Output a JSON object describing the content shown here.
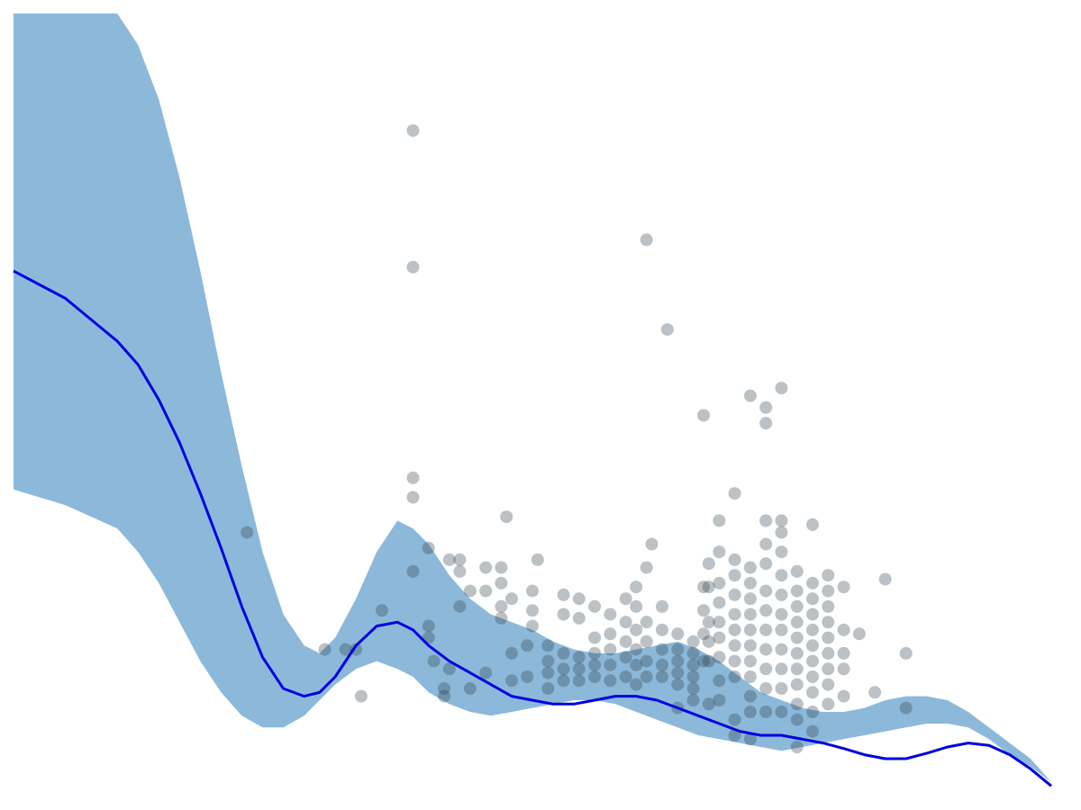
{
  "chart_data": {
    "type": "scatter",
    "title": "",
    "xlabel": "",
    "ylabel": "",
    "xlim": [
      0,
      100
    ],
    "ylim": [
      0,
      100
    ],
    "grid": false,
    "axes_visible": false,
    "colors": {
      "band": "#8cb9da",
      "line": "#0000e0",
      "points": "#2b3f47"
    },
    "band": {
      "x": [
        0,
        5,
        10,
        12,
        14,
        16,
        18,
        20,
        22,
        24,
        26,
        28,
        29.5,
        31,
        33,
        35,
        37,
        38.5,
        40,
        42,
        44,
        46,
        48,
        50,
        52,
        54,
        56,
        58,
        60,
        62,
        64,
        66,
        68,
        70,
        72,
        74,
        76,
        78,
        80,
        82,
        84,
        86,
        88,
        90,
        92,
        94,
        96,
        98,
        100
      ],
      "upper": [
        100,
        100,
        100,
        96,
        89,
        79,
        67,
        54,
        42,
        31,
        23,
        19,
        18,
        20,
        25,
        31,
        35,
        34,
        32,
        28,
        25,
        23,
        22,
        21,
        19.5,
        18.5,
        18,
        18,
        18.5,
        19,
        19.5,
        18.5,
        17,
        15,
        13,
        12,
        11,
        10.5,
        10.5,
        11,
        12,
        12.5,
        12.5,
        12,
        10.5,
        8.5,
        6.5,
        4.5,
        1.5
      ],
      "lower": [
        39,
        37,
        34,
        31,
        27,
        22,
        17,
        13,
        10,
        8.5,
        8.5,
        10,
        12,
        14,
        16,
        17,
        16,
        15,
        13,
        11.5,
        10.5,
        10,
        10.5,
        11,
        11.5,
        12,
        12,
        11.5,
        10.5,
        9.5,
        8.5,
        7.5,
        7,
        6.5,
        6,
        5.5,
        6,
        6.5,
        7,
        7.5,
        8,
        8.5,
        9,
        9,
        8.5,
        7,
        5,
        3.5,
        1.5
      ]
    },
    "series": [
      {
        "type": "line",
        "x": [
          0,
          5,
          10,
          12,
          14,
          16,
          18,
          20,
          22,
          24,
          26,
          28,
          29.5,
          31,
          33,
          35,
          37,
          38.5,
          40,
          42,
          44,
          46,
          48,
          50,
          52,
          54,
          56,
          58,
          60,
          62,
          64,
          66,
          68,
          70,
          72,
          74,
          76,
          78,
          80,
          82,
          84,
          86,
          88,
          90,
          92,
          94,
          96,
          98,
          100
        ],
        "y": [
          67,
          63.5,
          58,
          55,
          50.5,
          45,
          38.5,
          31.5,
          24,
          17.5,
          13.5,
          12.5,
          13,
          15,
          19,
          21.5,
          22,
          21,
          19,
          17,
          15.5,
          14,
          12.5,
          12,
          11.5,
          11.5,
          12,
          12.5,
          12.5,
          12,
          11,
          10,
          9,
          8,
          7.5,
          7.5,
          7,
          6.5,
          5.8,
          5,
          4.5,
          4.5,
          5.2,
          6,
          6.5,
          6.2,
          5,
          3.2,
          1
        ]
      },
      {
        "type": "scatter",
        "x": [
          22.5,
          30,
          32,
          33,
          33.5,
          35.5,
          38.5,
          38.5,
          38.5,
          38.5,
          38.5,
          40,
          40,
          40,
          40.5,
          41.5,
          41.5,
          42,
          42,
          43,
          43,
          43,
          44,
          44,
          45.5,
          45.5,
          45.5,
          47,
          47,
          47,
          47,
          47.5,
          48,
          48,
          48,
          49.5,
          49.5,
          50,
          50,
          50,
          50.5,
          51.5,
          51.5,
          51.5,
          51.5,
          53,
          53,
          53,
          53,
          53,
          54.5,
          54.5,
          54.5,
          54.5,
          54.5,
          56,
          56,
          56,
          56,
          56,
          57.5,
          57.5,
          57.5,
          57.5,
          57.5,
          59,
          59,
          59,
          59,
          59,
          60,
          60,
          60,
          60,
          60,
          60,
          61,
          61,
          61,
          61,
          61,
          61,
          61.5,
          62.5,
          62.5,
          62.5,
          62.5,
          62.5,
          63,
          64,
          64,
          64,
          64,
          64,
          64,
          65.5,
          65.5,
          65.5,
          65.5,
          65.5,
          65.5,
          66.5,
          66.5,
          66.5,
          66.5,
          66.5,
          67,
          67,
          67,
          67,
          67,
          67,
          68,
          68,
          68,
          68,
          68,
          68,
          68,
          68,
          68,
          69.5,
          69.5,
          69.5,
          69.5,
          69.5,
          69.5,
          69.5,
          69.5,
          69.5,
          69.5,
          69.5,
          71,
          71,
          71,
          71,
          71,
          71,
          71,
          71,
          71,
          71,
          71,
          71,
          72.5,
          72.5,
          72.5,
          72.5,
          72.5,
          72.5,
          72.5,
          72.5,
          72.5,
          72.5,
          72.5,
          72.5,
          74,
          74,
          74,
          74,
          74,
          74,
          74,
          74,
          74,
          74,
          74,
          74,
          75.5,
          75.5,
          75.5,
          75.5,
          75.5,
          75.5,
          75.5,
          75.5,
          75.5,
          75.5,
          75.5,
          77,
          77,
          77,
          77,
          77,
          77,
          77,
          77,
          77,
          77,
          77,
          78.5,
          78.5,
          78.5,
          78.5,
          78.5,
          78.5,
          78.5,
          78.5,
          78.5,
          80,
          80,
          80,
          80,
          80,
          81.5,
          83,
          84,
          86,
          86
        ],
        "y": [
          33.5,
          18.5,
          18.5,
          18.5,
          12.5,
          23.5,
          85,
          67.5,
          40.5,
          38,
          28.5,
          31.5,
          21.5,
          20,
          17,
          13.5,
          12.5,
          30,
          16,
          30,
          28.5,
          24,
          26,
          13.5,
          29,
          26,
          15.5,
          29,
          27,
          24,
          22.5,
          35.5,
          25,
          18,
          14.5,
          19,
          15,
          26,
          23.5,
          21.5,
          30,
          19,
          17,
          15.5,
          13.5,
          25.5,
          23,
          18,
          16,
          14.5,
          25,
          22.5,
          17.5,
          16,
          14.5,
          24,
          20,
          18,
          16.5,
          15,
          23,
          20.5,
          18.5,
          16.5,
          14.5,
          25,
          22,
          19.5,
          17.5,
          15,
          26.5,
          24,
          21,
          18.5,
          16.5,
          14,
          71,
          29,
          22,
          19.5,
          17,
          15,
          32,
          24,
          21,
          18.5,
          16.5,
          15,
          59.5,
          20.5,
          18.5,
          17,
          15.5,
          14,
          11,
          19.5,
          18,
          16.5,
          15,
          13.5,
          12,
          48.5,
          26.5,
          23.5,
          20.5,
          17,
          29.5,
          26.5,
          22,
          19.5,
          17,
          11.5,
          35,
          31,
          27,
          24.5,
          22,
          20,
          17.5,
          14.5,
          12,
          38.5,
          30,
          28,
          25.5,
          23,
          21,
          19,
          17,
          15,
          9.5,
          7.5,
          51,
          29,
          27,
          25,
          23,
          21,
          19,
          17,
          15,
          12.5,
          10.5,
          7,
          49.5,
          47.5,
          35,
          32,
          29.5,
          26,
          23.5,
          21,
          18.5,
          16,
          13.5,
          10.5,
          52,
          35,
          33.5,
          31,
          28,
          25.5,
          23,
          21,
          18.5,
          16,
          13.5,
          10.5,
          28.5,
          26,
          24,
          22,
          20,
          18,
          16,
          14,
          11.5,
          9.5,
          6,
          34.5,
          27,
          25,
          23,
          21,
          19,
          17,
          15,
          13,
          10.5,
          8,
          28,
          26,
          24,
          22,
          20,
          18,
          16,
          14,
          11.5,
          26.5,
          21,
          18,
          16,
          12.5,
          20.5,
          13,
          27.5,
          18,
          11
        ]
      }
    ]
  }
}
